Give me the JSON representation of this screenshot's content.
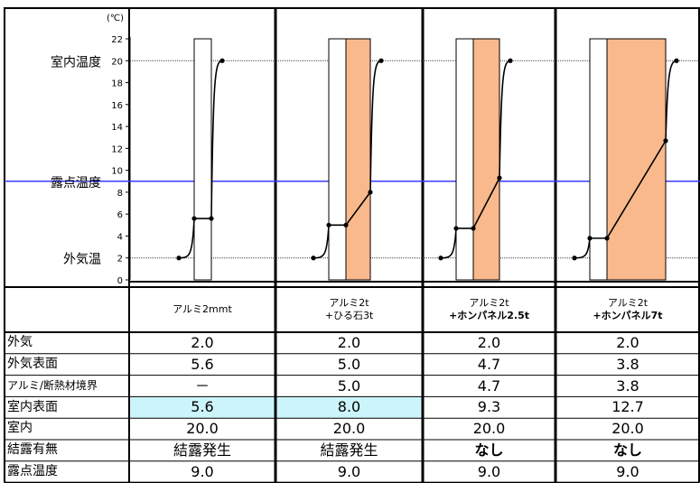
{
  "chart_data": {
    "type": "line",
    "unit_label": "(℃)",
    "y_ticks": [
      0,
      2,
      4,
      6,
      8,
      10,
      12,
      14,
      16,
      18,
      20,
      22
    ],
    "ylim": [
      0,
      22
    ],
    "side_labels": [
      {
        "text": "室内温度",
        "y": 20
      },
      {
        "text": "露点温度",
        "y": 9
      },
      {
        "text": "外気温",
        "y": 2
      }
    ],
    "reference_lines": {
      "indoor": 20,
      "dew_point": 9,
      "outdoor": 2
    },
    "colors": {
      "insulation_fill": "#f9b98c",
      "dew_line": "#3a3aff",
      "row_highlight": "#ccf5fb",
      "grid": "#444444"
    },
    "panels": [
      {
        "name": "アルミ2mmt",
        "outdoor": 2.0,
        "outer_surface": 5.6,
        "interface": null,
        "inner_surface": 5.6,
        "indoor": 20.0,
        "has_insulation": false,
        "insulation_rel_width": 0
      },
      {
        "name": "アルミ2t+ひる石3t",
        "outdoor": 2.0,
        "outer_surface": 5.0,
        "interface": 5.0,
        "inner_surface": 8.0,
        "indoor": 20.0,
        "has_insulation": true,
        "insulation_rel_width": 1.0
      },
      {
        "name": "アルミ2t+ホンパネル2.5t",
        "outdoor": 2.0,
        "outer_surface": 4.7,
        "interface": 4.7,
        "inner_surface": 9.3,
        "indoor": 20.0,
        "has_insulation": true,
        "insulation_rel_width": 1.0
      },
      {
        "name": "アルミ2t+ホンパネル7t",
        "outdoor": 2.0,
        "outer_surface": 3.8,
        "interface": 3.8,
        "inner_surface": 12.7,
        "indoor": 20.0,
        "has_insulation": true,
        "insulation_rel_width": 2.7
      }
    ]
  },
  "table": {
    "headers": [
      {
        "line1": "アルミ2mmt",
        "line2": "",
        "bold": false
      },
      {
        "line1": "アルミ2t",
        "line2": "+ひる石3t",
        "bold": false
      },
      {
        "line1": "アルミ2t",
        "line2": "+ホンパネル2.5t",
        "bold": true
      },
      {
        "line1": "アルミ2t",
        "line2": "+ホンパネル7t",
        "bold": true
      }
    ],
    "rows": [
      {
        "label": "外気",
        "values": [
          "2.0",
          "2.0",
          "2.0",
          "2.0"
        ],
        "highlight": false
      },
      {
        "label": "外気表面",
        "values": [
          "5.6",
          "5.0",
          "4.7",
          "3.8"
        ],
        "highlight": false
      },
      {
        "label": "アルミ/断熱材境界",
        "values": [
          "－",
          "5.0",
          "4.7",
          "3.8"
        ],
        "highlight": false
      },
      {
        "label": "室内表面",
        "values": [
          "5.6",
          "8.0",
          "9.3",
          "12.7"
        ],
        "highlight": true
      },
      {
        "label": "室内",
        "values": [
          "20.0",
          "20.0",
          "20.0",
          "20.0"
        ],
        "highlight": false
      },
      {
        "label": "結露有無",
        "values": [
          "結露発生",
          "結露発生",
          "なし",
          "なし"
        ],
        "highlight": false,
        "bold_cols": [
          2,
          3
        ]
      },
      {
        "label": "露点温度",
        "values": [
          "9.0",
          "9.0",
          "9.0",
          "9.0"
        ],
        "highlight": false
      }
    ]
  }
}
